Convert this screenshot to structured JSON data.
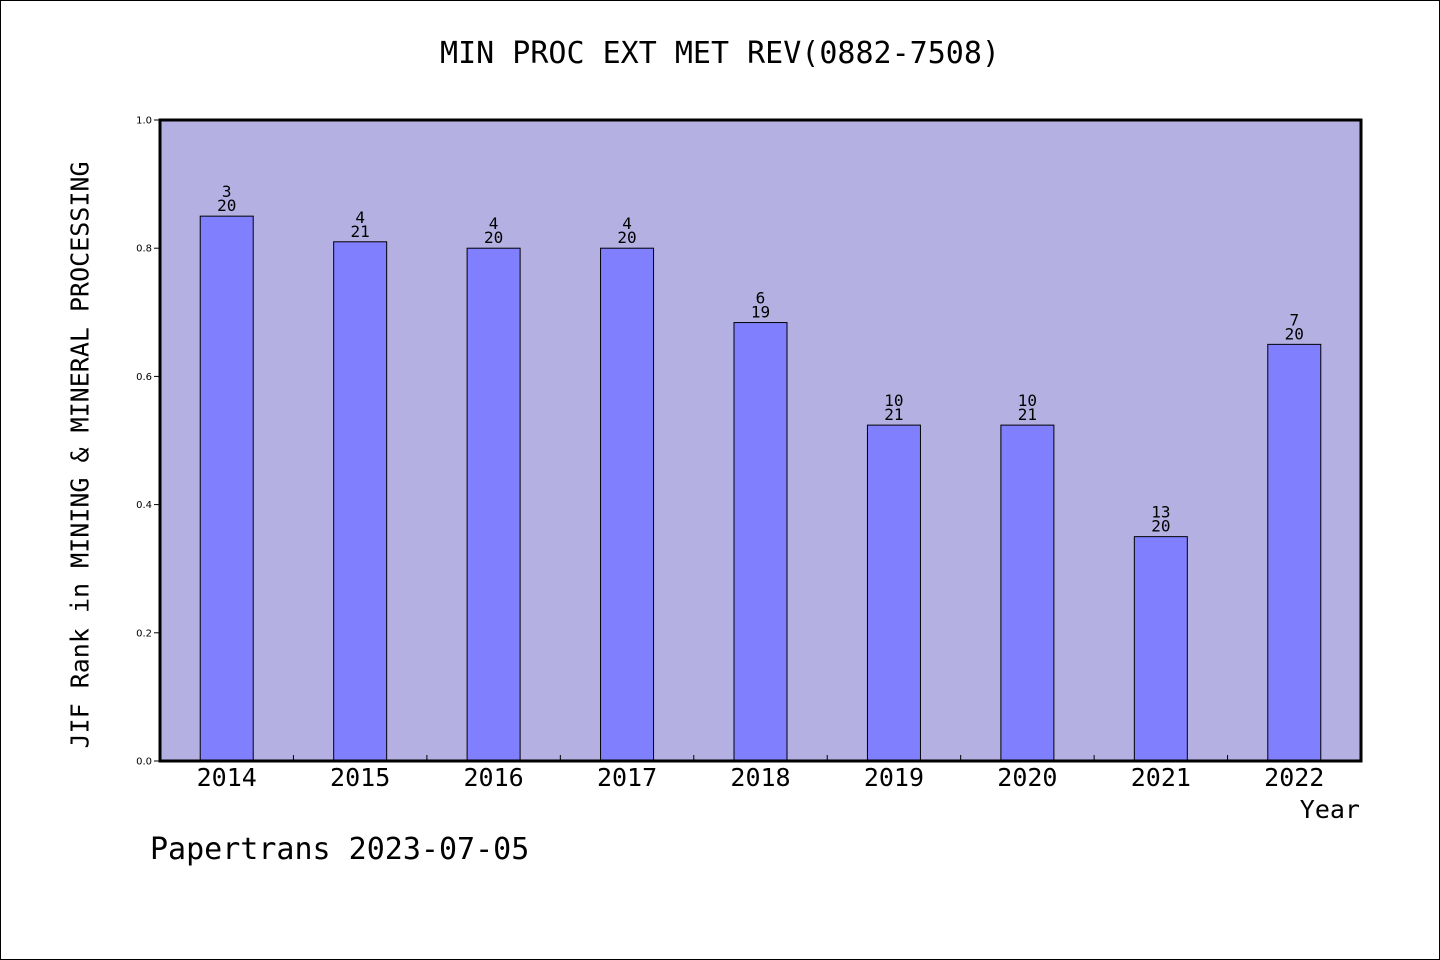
{
  "chart_data": {
    "type": "bar",
    "title": "MIN PROC EXT MET REV(0882-7508)",
    "xlabel": "Year",
    "ylabel": "JIF Rank in MINING & MINERAL PROCESSING",
    "ylim": [
      0,
      1.0
    ],
    "yticks": [
      "0.0",
      "0.2",
      "0.4",
      "0.6",
      "0.8",
      "1.0"
    ],
    "categories": [
      "2014",
      "2015",
      "2016",
      "2017",
      "2018",
      "2019",
      "2020",
      "2021",
      "2022"
    ],
    "values": [
      0.85,
      0.81,
      0.8,
      0.8,
      0.684,
      0.524,
      0.524,
      0.35,
      0.65
    ],
    "bar_labels": [
      {
        "rank": "3",
        "total": "20"
      },
      {
        "rank": "4",
        "total": "21"
      },
      {
        "rank": "4",
        "total": "20"
      },
      {
        "rank": "4",
        "total": "20"
      },
      {
        "rank": "6",
        "total": "19"
      },
      {
        "rank": "10",
        "total": "21"
      },
      {
        "rank": "10",
        "total": "21"
      },
      {
        "rank": "13",
        "total": "20"
      },
      {
        "rank": "7",
        "total": "20"
      }
    ],
    "grid": false,
    "colors": {
      "plot_background": "#b5b0e2",
      "bar_fill": "#8080ff",
      "bar_edge": "#000000"
    }
  },
  "footer": "Papertrans 2023-07-05"
}
